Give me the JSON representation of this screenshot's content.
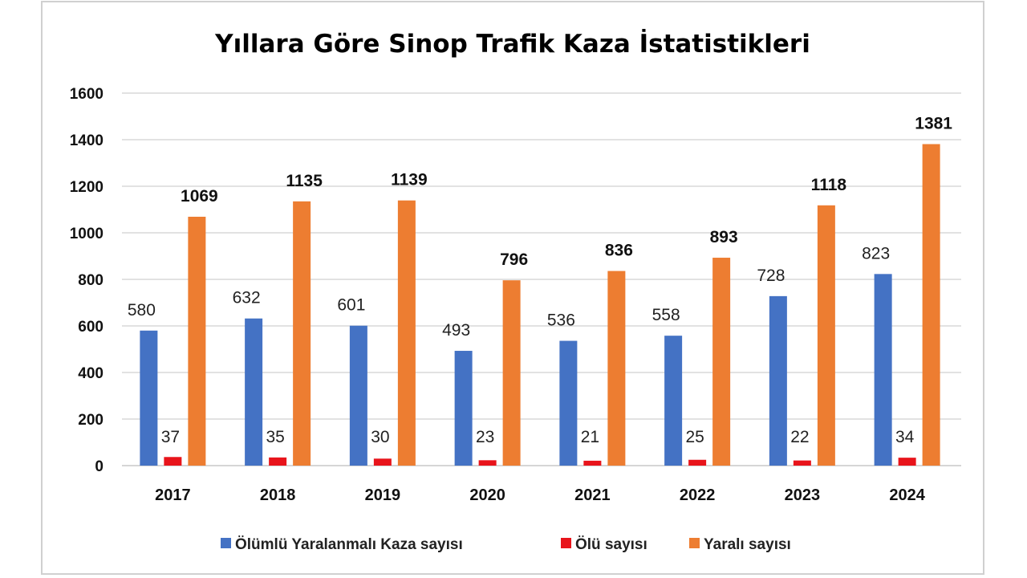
{
  "chart_data": {
    "type": "bar",
    "title": "Yıllara Göre Sinop Trafik Kaza İstatistikleri",
    "xlabel": "",
    "ylabel": "",
    "categories": [
      "2017",
      "2018",
      "2019",
      "2020",
      "2021",
      "2022",
      "2023",
      "2024"
    ],
    "series": [
      {
        "name": "Ölümlü Yaralanmalı Kaza sayısı",
        "color": "#4472c4",
        "values": [
          580,
          632,
          601,
          493,
          536,
          558,
          728,
          823
        ]
      },
      {
        "name": "Ölü sayısı",
        "color": "#e8141b",
        "values": [
          37,
          35,
          30,
          23,
          21,
          25,
          22,
          34
        ]
      },
      {
        "name": "Yaralı sayısı",
        "color": "#ed7d31",
        "values": [
          1069,
          1135,
          1139,
          796,
          836,
          893,
          1118,
          1381
        ]
      }
    ],
    "ylim": [
      0,
      1600
    ],
    "yticks": [
      "0",
      "200",
      "400",
      "600",
      "800",
      "1000",
      "1200",
      "1400",
      "1600"
    ],
    "grid": true,
    "legend_position": "bottom"
  }
}
